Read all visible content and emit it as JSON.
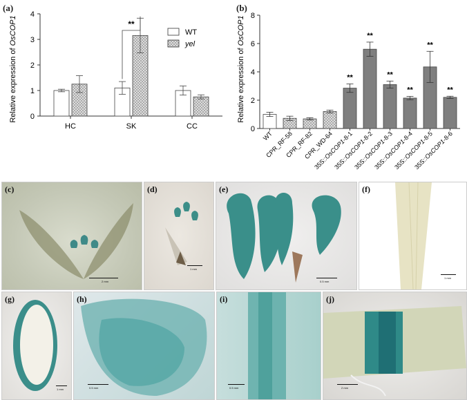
{
  "panels": {
    "a": "(a)",
    "b": "(b)",
    "c": "(c)",
    "d": "(d)",
    "e": "(e)",
    "f": "(f)",
    "g": "(g)",
    "h": "(h)",
    "i": "(i)",
    "j": "(j)"
  },
  "chart_data": [
    {
      "type": "bar",
      "ylabel_prefix": "Relative expression of ",
      "ylabel_gene": "OsCOP1",
      "categories": [
        "HC",
        "SK",
        "CC"
      ],
      "ylim": [
        0,
        4
      ],
      "yticks": [
        "0",
        "1",
        "2",
        "3",
        "4"
      ],
      "series": [
        {
          "name": "WT",
          "values": [
            1.0,
            1.1,
            1.0
          ],
          "errors": [
            0.05,
            0.25,
            0.18
          ],
          "color": "#ffffff"
        },
        {
          "name": "yel",
          "values": [
            1.25,
            3.15,
            0.75
          ],
          "errors": [
            0.33,
            0.68,
            0.08
          ],
          "color": "#cfcfcf"
        }
      ],
      "significance": [
        {
          "label": "**",
          "category": "SK"
        }
      ],
      "legend": "top-right"
    },
    {
      "type": "bar",
      "ylabel_prefix": "Relative expression of ",
      "ylabel_gene": "OsCOP1",
      "ylim": [
        0,
        8
      ],
      "yticks": [
        "0",
        "2",
        "4",
        "6",
        "8"
      ],
      "categories": [
        "WT",
        "CPR_RF-58",
        "CPR_RF-82",
        "CPR_WD-64",
        "35S::OsCOP1-8-1",
        "35S::OsCOP1-8-2",
        "35S::OsCOP1-8-3",
        "35S::OsCOP1-8-4",
        "35S::OsCOP1-8-5",
        "35S::OsCOP1-8-6"
      ],
      "values": [
        1.0,
        0.72,
        0.68,
        1.2,
        2.85,
        5.6,
        3.1,
        2.15,
        4.35,
        2.2
      ],
      "errors": [
        0.15,
        0.15,
        0.08,
        0.1,
        0.3,
        0.5,
        0.25,
        0.12,
        1.1,
        0.08
      ],
      "styles": [
        "white",
        "hatched",
        "hatched",
        "hatched",
        "gray",
        "gray",
        "gray",
        "gray",
        "gray",
        "gray"
      ],
      "significance": [
        "",
        "",
        "",
        "",
        "**",
        "**",
        "**",
        "**",
        "**",
        "**"
      ]
    }
  ],
  "photos": {
    "c": {
      "scale": "2 mm"
    },
    "d": {
      "scale": "1 mm"
    },
    "e": {
      "scale": "0.5 mm"
    },
    "f": {
      "scale": "1 mm"
    },
    "g": {
      "scale": "1 mm"
    },
    "h": {
      "scale": "0.5 mm"
    },
    "i": {
      "scale": "0.5 mm"
    },
    "j": {
      "scale": "2 mm"
    }
  }
}
